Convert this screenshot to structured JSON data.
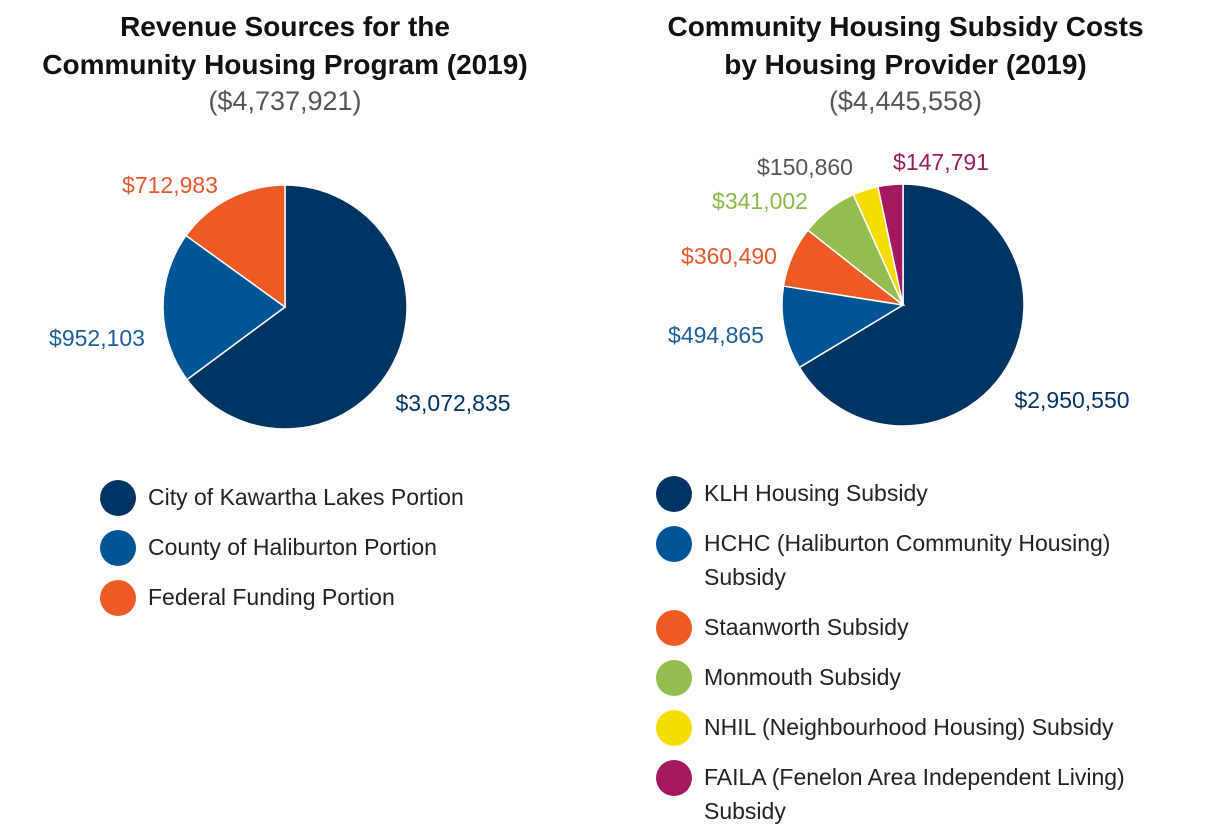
{
  "chart_data": [
    {
      "type": "pie",
      "title": [
        "Revenue Sources for the",
        "Community Housing Program (2019)"
      ],
      "subtitle": "($4,737,921)",
      "start": "12 o'clock",
      "direction": "clockwise",
      "slices": [
        {
          "name": "City of Kawartha Lakes Portion",
          "value": 3072835,
          "label": "$3,072,835",
          "color": "#003463",
          "label_color": "#003463"
        },
        {
          "name": "County of Haliburton Portion",
          "value": 952103,
          "label": "$952,103",
          "color": "#005596",
          "label_color": "#1a5f9c"
        },
        {
          "name": "Federal Funding Portion",
          "value": 712983,
          "label": "$712,983",
          "color": "#ee5a24",
          "label_color": "#e8572a"
        }
      ],
      "legend_position": "bottom"
    },
    {
      "type": "pie",
      "title": [
        "Community Housing Subsidy Costs",
        "by Housing Provider (2019)"
      ],
      "subtitle": "($4,445,558)",
      "start": "12 o'clock",
      "direction": "clockwise",
      "slices": [
        {
          "name": "KLH Housing Subsidy",
          "value": 2950550,
          "label": "$2,950,550",
          "color": "#003463",
          "label_color": "#003463"
        },
        {
          "name": "HCHC (Haliburton Community Housing) Subsidy",
          "value": 494865,
          "label": "$494,865",
          "color": "#005596",
          "label_color": "#1a5f9c"
        },
        {
          "name": "Staanworth Subsidy",
          "value": 360490,
          "label": "$360,490",
          "color": "#ee5a24",
          "label_color": "#e8572a"
        },
        {
          "name": "Monmouth Subsidy",
          "value": 341002,
          "label": "$341,002",
          "color": "#92bd4f",
          "label_color": "#8fb84c"
        },
        {
          "name": "NHIL (Neighbourhood Housing) Subsidy",
          "value": 150860,
          "label": "$150,860",
          "color": "#f7dc00",
          "label_color": "#555555"
        },
        {
          "name": "FAILA (Fenelon Area Independent Living) Subsidy",
          "value": 147791,
          "label": "$147,791",
          "color": "#a3185f",
          "label_color": "#9b1c5e"
        }
      ],
      "legend_position": "bottom"
    }
  ]
}
